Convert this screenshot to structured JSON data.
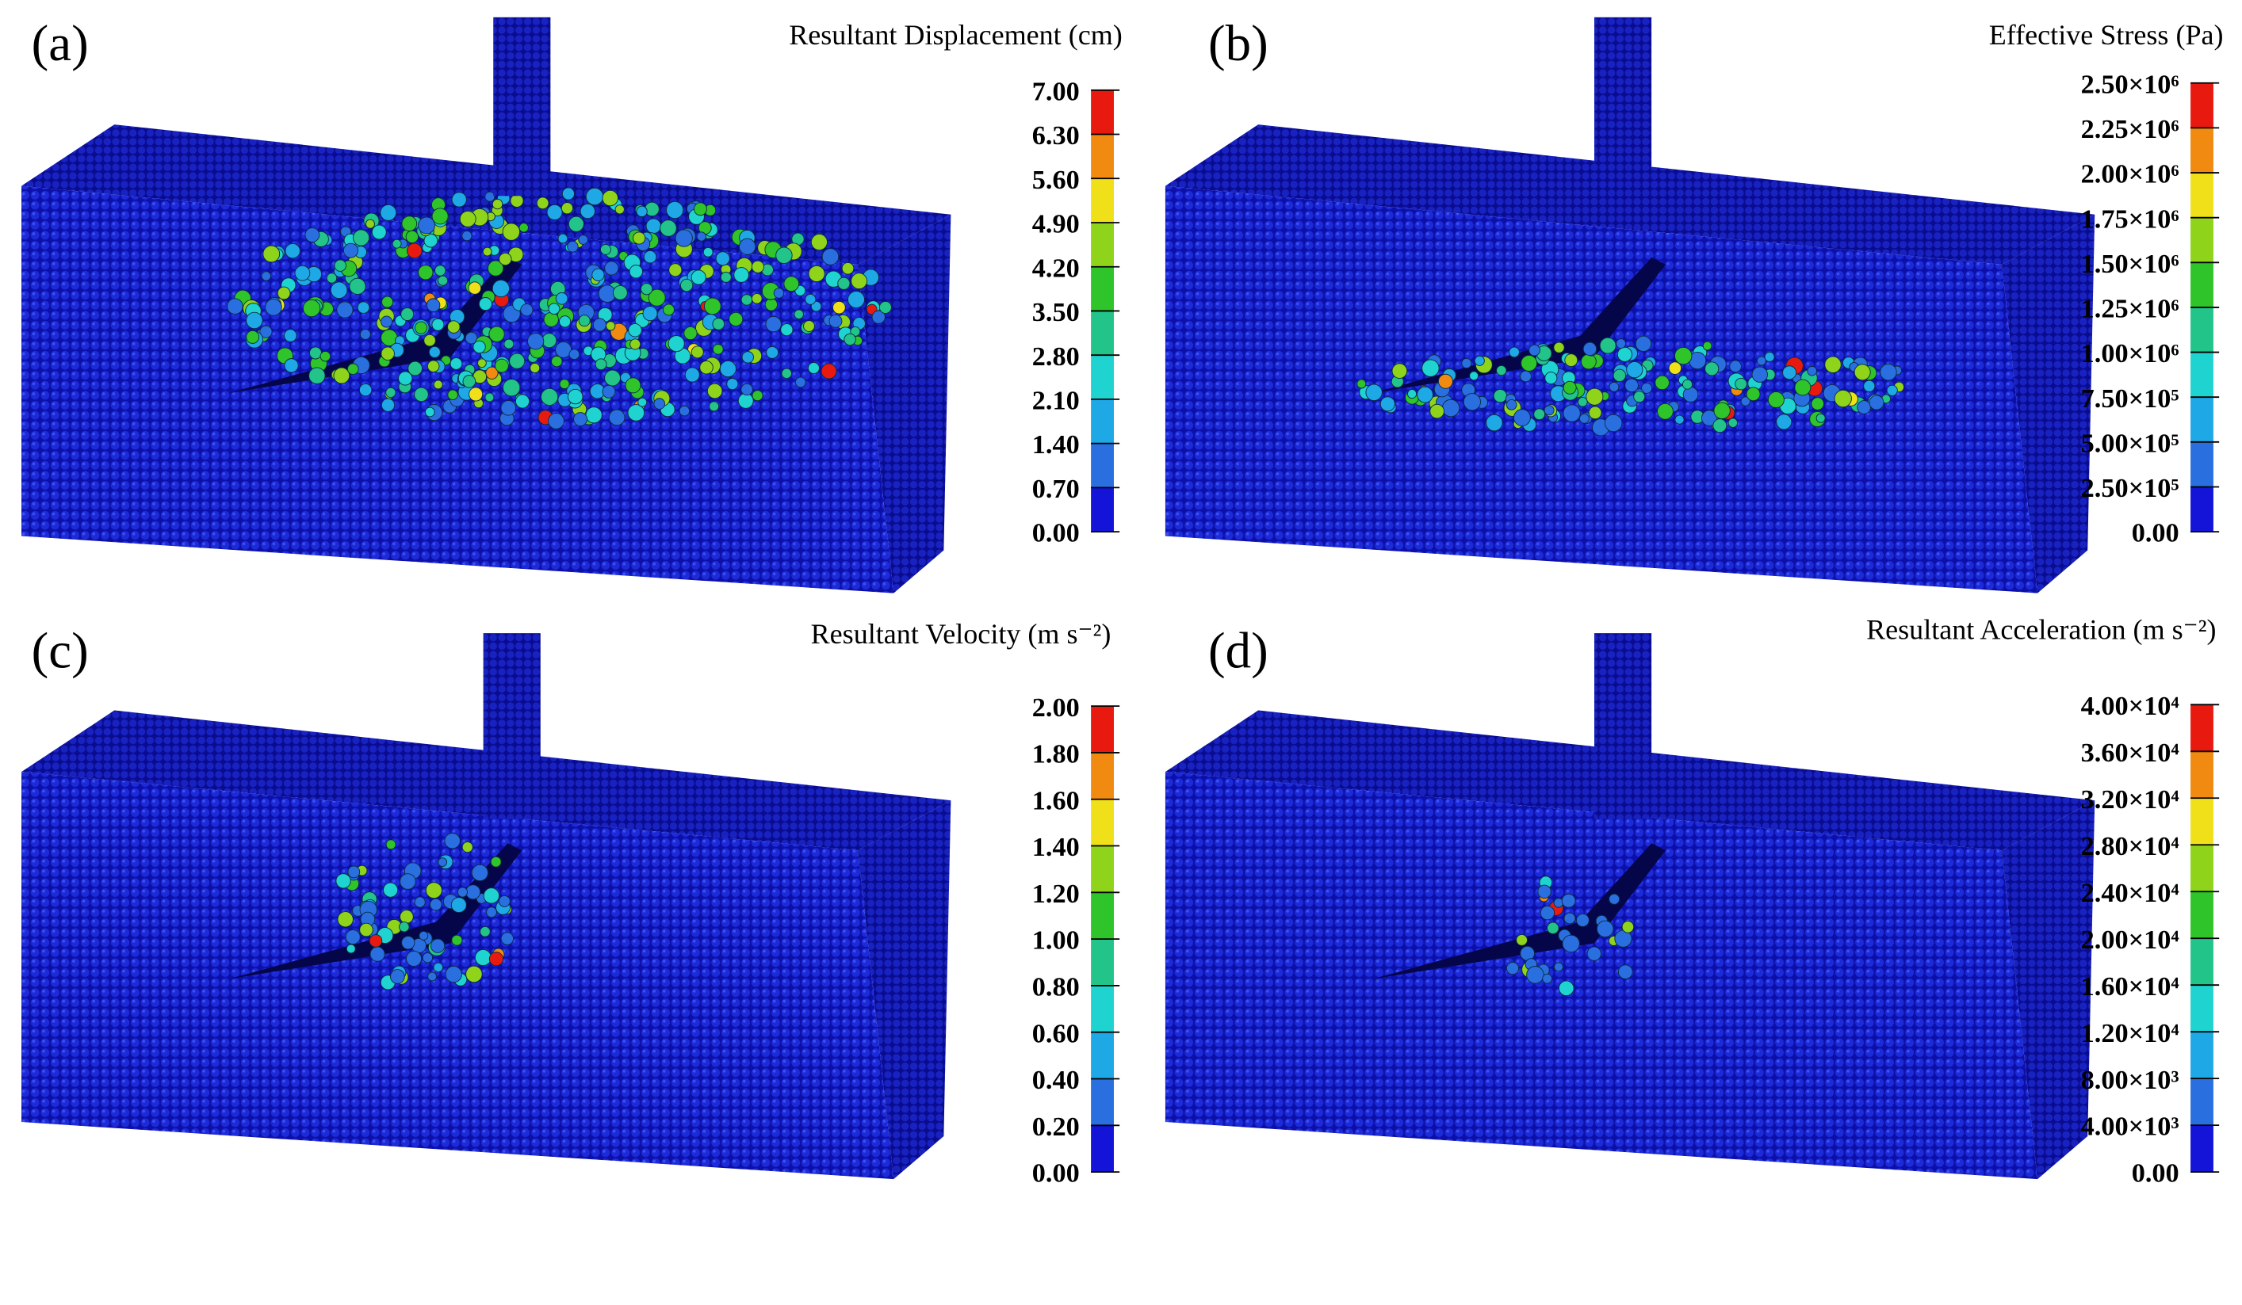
{
  "panels": [
    {
      "label": "(a)",
      "title": "Resultant Displacement (cm)",
      "colorbar": [
        "7.00",
        "6.30",
        "5.60",
        "4.90",
        "4.20",
        "3.50",
        "2.80",
        "2.10",
        "1.40",
        "0.70",
        "0.00"
      ]
    },
    {
      "label": "(b)",
      "title": "Effective Stress (Pa)",
      "colorbar": [
        "2.50×10⁶",
        "2.25×10⁶",
        "2.00×10⁶",
        "1.75×10⁶",
        "1.50×10⁶",
        "1.25×10⁶",
        "1.00×10⁶",
        "7.50×10⁵",
        "5.00×10⁵",
        "2.50×10⁵",
        "0.00"
      ]
    },
    {
      "label": "(c)",
      "title": "Resultant Velocity (m s⁻²)",
      "colorbar": [
        "2.00",
        "1.80",
        "1.60",
        "1.40",
        "1.20",
        "1.00",
        "0.80",
        "0.60",
        "0.40",
        "0.20",
        "0.00"
      ]
    },
    {
      "label": "(d)",
      "title": "Resultant Acceleration (m s⁻²)",
      "colorbar": [
        "4.00×10⁴",
        "3.60×10⁴",
        "3.20×10⁴",
        "2.80×10⁴",
        "2.40×10⁴",
        "2.00×10⁴",
        "1.60×10⁴",
        "1.20×10⁴",
        "8.00×10³",
        "4.00×10³",
        "0.00"
      ]
    }
  ]
}
